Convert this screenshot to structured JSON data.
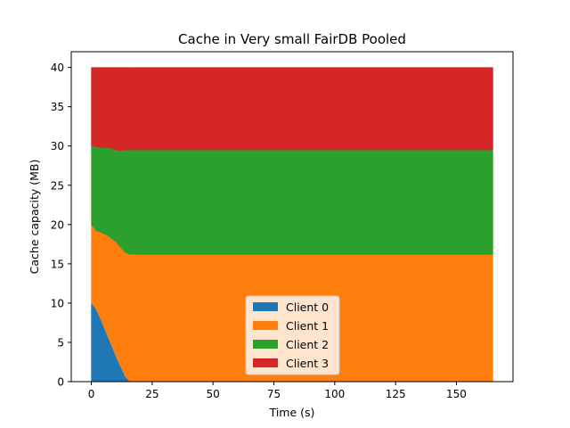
{
  "chart_data": {
    "type": "area",
    "stacked": true,
    "title": "Cache in Very small FairDB Pooled",
    "xlabel": "Time (s)",
    "ylabel": "Cache capacity (MB)",
    "xlim": [
      -8.25,
      173.25
    ],
    "ylim": [
      0,
      42
    ],
    "x_ticks": [
      0,
      25,
      50,
      75,
      100,
      125,
      150
    ],
    "y_ticks": [
      0,
      5,
      10,
      15,
      20,
      25,
      30,
      35,
      40
    ],
    "grid": false,
    "legend_position": "lower-center",
    "x": [
      0,
      2,
      4,
      6,
      8,
      10,
      12,
      14,
      16,
      18,
      20,
      165
    ],
    "series": [
      {
        "name": "Client 0",
        "color": "#1f77b4",
        "values": [
          10.0,
          9.2,
          7.8,
          6.3,
          4.8,
          3.3,
          1.9,
          0.6,
          0.0,
          0.0,
          0.0,
          0.0
        ]
      },
      {
        "name": "Client 1",
        "color": "#ff7f0e",
        "values": [
          10.0,
          10.0,
          11.2,
          12.4,
          13.5,
          14.5,
          15.2,
          15.8,
          16.2,
          16.2,
          16.2,
          16.2
        ]
      },
      {
        "name": "Client 2",
        "color": "#2ca02c",
        "values": [
          10.0,
          10.7,
          10.8,
          11.1,
          11.4,
          11.7,
          12.3,
          13.1,
          13.3,
          13.3,
          13.3,
          13.3
        ]
      },
      {
        "name": "Client 3",
        "color": "#d62728",
        "values": [
          10.0,
          10.1,
          10.2,
          10.2,
          10.3,
          10.5,
          10.6,
          10.5,
          10.5,
          10.5,
          10.5,
          10.5
        ]
      }
    ]
  }
}
